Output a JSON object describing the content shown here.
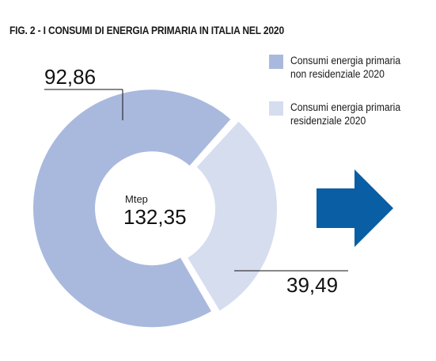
{
  "figure": {
    "title": "FIG. 2 - I CONSUMI DI ENERGIA PRIMARIA IN ITALIA NEL 2020"
  },
  "colors": {
    "non_residential": "#a9b9dd",
    "residential": "#d5ddef",
    "arrow": "#0a5ea4"
  },
  "center": {
    "unit": "Mtep",
    "total_label": "132,35"
  },
  "legend": [
    {
      "lines": [
        "Consumi energia primaria",
        "non residenziale 2020"
      ]
    },
    {
      "lines": [
        "Consumi energia primaria",
        "residenziale 2020"
      ]
    }
  ],
  "value_labels": [
    "92,86",
    "39,49"
  ],
  "chart_data": {
    "type": "pie",
    "title": "FIG. 2 - I CONSUMI DI ENERGIA PRIMARIA IN ITALIA NEL 2020",
    "unit": "Mtep",
    "total": 132.35,
    "categories": [
      "Consumi energia primaria non residenziale 2020",
      "Consumi energia primaria residenziale 2020"
    ],
    "values": [
      92.86,
      39.49
    ],
    "legend_position": "top-right",
    "donut": true
  }
}
